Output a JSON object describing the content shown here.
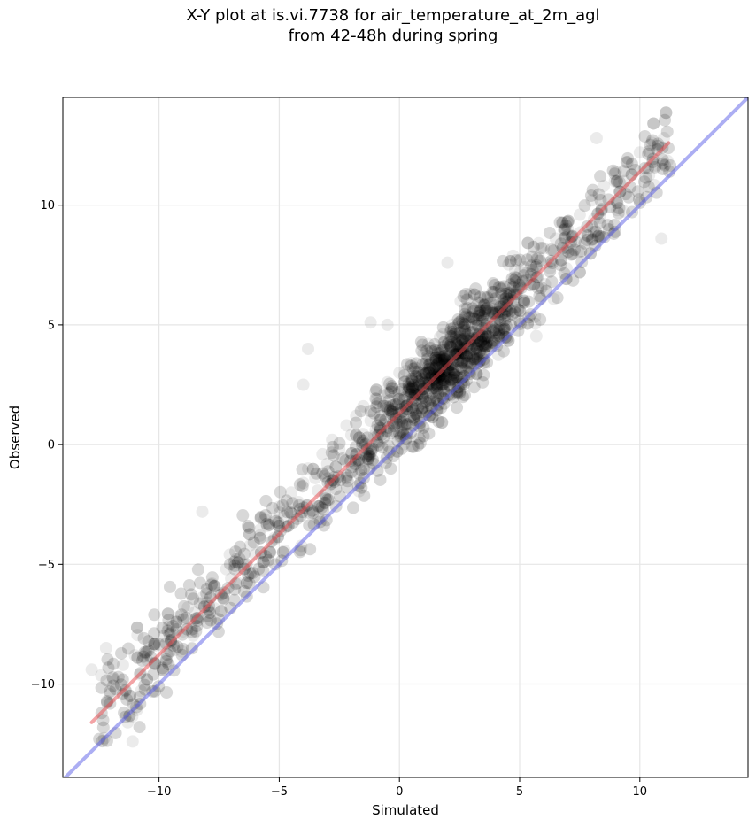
{
  "chart_data": {
    "type": "scatter",
    "title": "X-Y plot at is.vi.7738 for air_temperature_at_2m_agl",
    "subtitle": "from 42-48h during spring",
    "xlabel": "Simulated",
    "ylabel": "Observed",
    "xlim": [
      -14.0,
      14.5
    ],
    "ylim": [
      -13.9,
      14.5
    ],
    "xticks": [
      -10,
      -5,
      0,
      5,
      10
    ],
    "yticks": [
      -10,
      -5,
      0,
      5,
      10
    ],
    "xtick_labels": [
      "−10",
      "−5",
      "0",
      "5",
      "10"
    ],
    "ytick_labels": [
      "−10",
      "−5",
      "0",
      "5",
      "10"
    ],
    "grid": true,
    "legend": "none",
    "point_color": "#000000",
    "point_alpha": 0.08,
    "series": [
      {
        "type": "scatter",
        "x": [
          -12.8,
          -12.2,
          -11.9,
          -11.5,
          -11.2,
          -11.0,
          -10.8,
          -10.5,
          -10.2,
          -9.8,
          -9.6,
          -9.2,
          -9.0,
          -8.8,
          -8.5,
          -8.2,
          -8.0,
          -7.8,
          -7.5,
          -7.2,
          -7.0,
          -6.8,
          -6.5,
          -6.2,
          -6.0,
          -5.8,
          -5.5,
          -5.2,
          -5.0,
          -4.8,
          -4.5,
          -4.2,
          -4.0,
          -3.8,
          -3.5,
          -3.2,
          -3.0,
          -2.8,
          -2.5,
          -2.2,
          -2.0,
          -1.8,
          -1.5,
          -1.2,
          -1.0,
          -0.8,
          -0.5,
          -0.2,
          0.0,
          0.2,
          0.5,
          0.8,
          1.0,
          1.2,
          1.5,
          1.8,
          2.0,
          2.2,
          2.5,
          2.8,
          3.0,
          3.2,
          3.5,
          3.8,
          4.0,
          4.2,
          4.5,
          4.8,
          5.0,
          5.2,
          5.5,
          5.8,
          6.0,
          6.2,
          6.5,
          6.8,
          7.0,
          7.5,
          8.0,
          8.5,
          9.0,
          9.5,
          10.0,
          10.5,
          11.0,
          -11.3,
          -11.1,
          -8.2,
          -3.8,
          -0.5,
          3.3,
          8.2,
          -4.0,
          -1.2,
          2.0,
          10.9
        ],
        "y": [
          -9.4,
          -8.5,
          -9.8,
          -9.2,
          -10.5,
          -8.8,
          -9.6,
          -9.0,
          -8.4,
          -8.0,
          -7.6,
          -7.2,
          -7.8,
          -6.8,
          -7.0,
          -6.4,
          -6.6,
          -5.8,
          -6.2,
          -5.2,
          -5.6,
          -4.8,
          -5.0,
          -4.2,
          -4.6,
          -3.8,
          -3.4,
          -3.9,
          -2.6,
          -3.0,
          -2.0,
          -2.4,
          -1.6,
          -1.0,
          -1.4,
          -0.4,
          -0.8,
          0.2,
          -0.2,
          0.8,
          0.4,
          1.2,
          1.6,
          1.0,
          2.2,
          1.8,
          2.6,
          2.2,
          3.0,
          2.6,
          3.4,
          3.0,
          3.8,
          4.2,
          3.6,
          4.6,
          4.2,
          5.0,
          4.6,
          5.4,
          5.0,
          5.8,
          5.2,
          6.2,
          5.6,
          6.6,
          6.0,
          7.0,
          6.6,
          7.4,
          7.0,
          7.8,
          8.2,
          7.6,
          8.6,
          8.0,
          9.0,
          9.6,
          10.2,
          10.8,
          11.4,
          11.8,
          12.2,
          12.6,
          12.8,
          -11.6,
          -12.4,
          -2.8,
          4.0,
          5.0,
          5.5,
          12.8,
          2.5,
          5.1,
          7.6,
          8.6
        ],
        "color": "#000000"
      },
      {
        "type": "line",
        "x": [
          -12.8,
          11.2
        ],
        "y": [
          -11.6,
          12.6
        ],
        "color": "#e8474b"
      },
      {
        "type": "line",
        "x": [
          -14.0,
          14.5
        ],
        "y": [
          -14.0,
          14.5
        ],
        "color": "#5a5ee8"
      }
    ]
  }
}
